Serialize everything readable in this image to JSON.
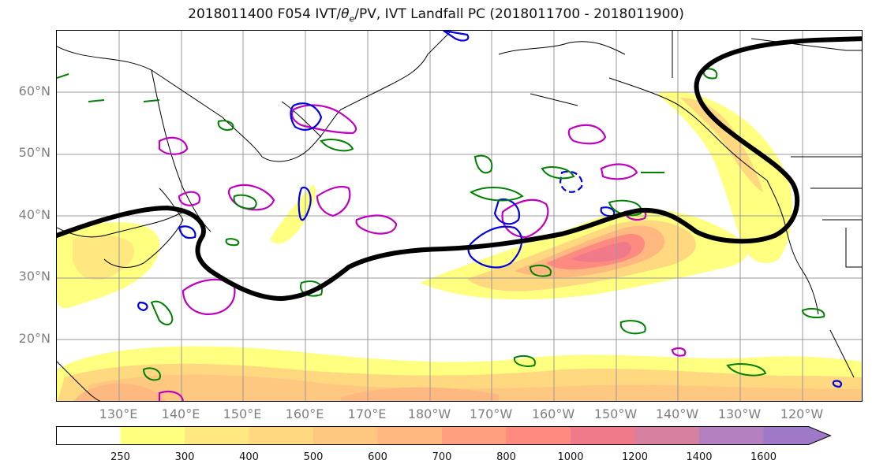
{
  "title": "2018011400 F054 IVT/θe/PV, IVT Landfall PC (2018011700 - 2018011900)",
  "title_parts": {
    "prefix": "2018011400 F054 IVT/",
    "theta": "θ",
    "theta_sub": "e",
    "suffix": "/PV, IVT Landfall PC (2018011700 - 2018011900)"
  },
  "map": {
    "lat_labels": [
      "60°N",
      "50°N",
      "40°N",
      "30°N",
      "20°N"
    ],
    "lon_labels": [
      "130°E",
      "140°E",
      "150°E",
      "160°E",
      "170°E",
      "180°W",
      "170°W",
      "160°W",
      "150°W",
      "140°W",
      "130°W",
      "120°W"
    ],
    "colors": {
      "land_outline": "#000000",
      "grid": "#999999",
      "pv_contour": "#c000c0",
      "theta_contour": "#0000e6",
      "minor_contour": "#008000",
      "pc_line": "#000000"
    }
  },
  "colorbar": {
    "levels": [
      "250",
      "300",
      "400",
      "500",
      "600",
      "700",
      "800",
      "1000",
      "1200",
      "1400",
      "1600"
    ],
    "colors": [
      "#ffffff",
      "#ffff80",
      "#ffe880",
      "#ffd880",
      "#ffc880",
      "#ffb880",
      "#ff9f80",
      "#ff8a80",
      "#f07a8a",
      "#d880a0",
      "#b480c0",
      "#a078c8"
    ]
  }
}
